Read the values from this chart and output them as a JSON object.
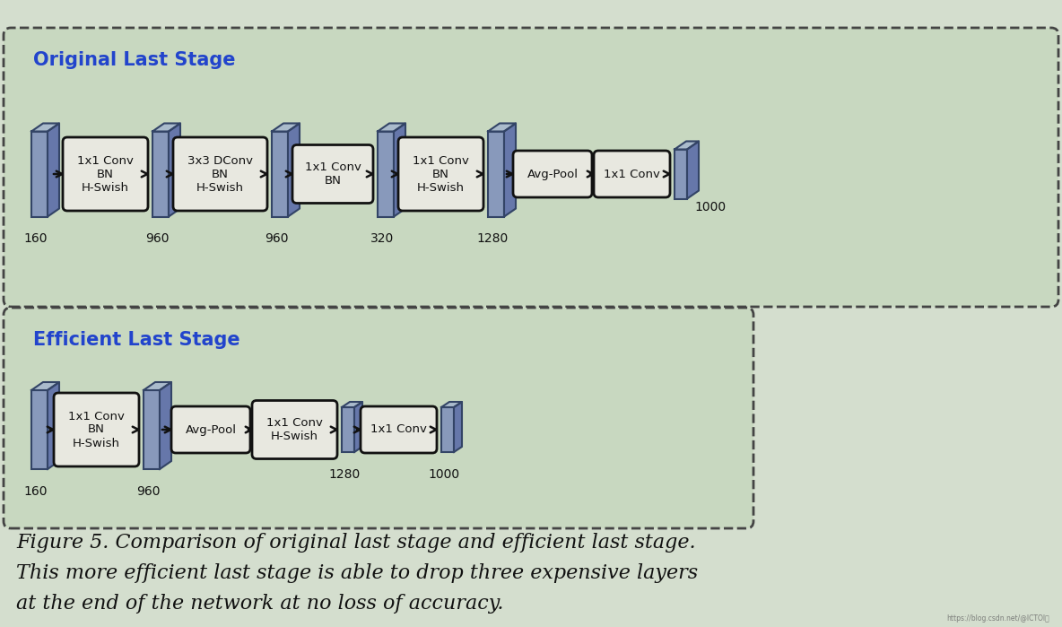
{
  "bg_color": "#d4dece",
  "panel_bg": "#c8d8c0",
  "panel_edge": "#444444",
  "block_face": "#8899bb",
  "block_top": "#aabbcc",
  "block_right": "#6677aa",
  "block_edge": "#334466",
  "textbox_bg": "#e8e8e0",
  "textbox_edge": "#111111",
  "title_color": "#2244cc",
  "arrow_color": "#111111",
  "label_color": "#111111",
  "caption_color": "#111111",
  "top_title": "Original Last Stage",
  "bottom_title": "Efficient Last Stage",
  "caption_line1": "Figure 5. Comparison of original last stage and efficient last stage.",
  "caption_line2": "This more efficient last stage is able to drop three expensive layers",
  "caption_line3": "at the end of the network at no loss of accuracy.",
  "watermark": "https://blog.csdn.net/@ICTOI屋"
}
